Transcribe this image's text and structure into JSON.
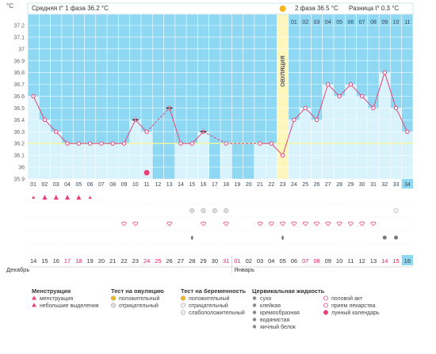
{
  "header": {
    "phase1_label": "Средняя t° 1 фаза",
    "phase1_value": "36.2 °C",
    "phase2_label": "2 фаза",
    "phase2_value": "36.5 °C",
    "diff_label": "Разница t°",
    "diff_value": "0.3 °C"
  },
  "ovulation_label": "ОВУЛЯЦИЯ",
  "months": {
    "december": "Декабрь",
    "january": "Январь"
  },
  "chart_data": {
    "type": "line",
    "ylabel": "°C",
    "ylim": [
      35.9,
      37.2
    ],
    "y_ticks": [
      "37.2",
      "37.1",
      "37",
      "36.9",
      "36.8",
      "36.7",
      "36.6",
      "36.5",
      "36.4",
      "36.3",
      "36.2",
      "36.1",
      "36",
      "35.9"
    ],
    "day_labels": [
      "01",
      "02",
      "03",
      "04",
      "05",
      "06",
      "07",
      "08",
      "09",
      "10",
      "11",
      "12",
      "13",
      "14",
      "15",
      "16",
      "17",
      "18",
      "19",
      "20",
      "21",
      "22",
      "23",
      "24",
      "25",
      "26",
      "27",
      "28",
      "29",
      "30",
      "31",
      "32",
      "33",
      "34"
    ],
    "top_day_labels": [
      "01",
      "02",
      "03",
      "04",
      "05",
      "06",
      "07",
      "08",
      "09",
      "10",
      "11"
    ],
    "date_labels": [
      "14",
      "15",
      "16",
      "17",
      "18",
      "19",
      "20",
      "21",
      "22",
      "23",
      "24",
      "25",
      "26",
      "27",
      "28",
      "29",
      "30",
      "31",
      "01",
      "02",
      "03",
      "04",
      "05",
      "06",
      "07",
      "08",
      "09",
      "10",
      "11",
      "12",
      "13",
      "14",
      "15",
      "16"
    ],
    "red_date_indices": [
      3,
      4,
      10,
      11,
      17,
      18,
      24,
      25,
      31,
      32
    ],
    "bar_color_mode": [
      "light",
      "light",
      "light",
      "light",
      "light",
      "light",
      "light",
      "light",
      "light",
      "light",
      "light",
      "blue",
      "blue",
      "light",
      "light",
      "light",
      "blue",
      "light",
      "light",
      "blue",
      "light",
      "light",
      "ovu",
      "light",
      "light",
      "light",
      "light",
      "light",
      "light",
      "light",
      "light",
      "light",
      "light",
      "light"
    ],
    "series": [
      {
        "values": [
          36.6,
          36.4,
          36.3,
          36.2,
          36.2,
          36.2,
          36.2,
          36.2,
          36.2,
          36.4,
          36.3,
          null,
          36.5,
          36.2,
          36.2,
          36.3,
          null,
          36.2,
          null,
          null,
          36.2,
          36.2,
          36.1,
          36.4,
          36.5,
          36.4,
          36.7,
          36.6,
          36.7,
          36.6,
          36.5,
          36.8,
          36.5,
          36.3
        ]
      }
    ],
    "coverline": 36.2
  },
  "symbols": {
    "menstruation_days": [
      0,
      1,
      2,
      3,
      4,
      5
    ],
    "menstruation_small_days": [
      0,
      5
    ],
    "ovulation_neg_days": [
      14,
      15,
      16,
      17
    ],
    "pregnancy_neg_days": [
      8,
      9,
      12,
      15,
      17,
      20,
      21,
      22,
      23,
      24,
      25,
      26,
      27,
      28,
      29,
      30
    ],
    "moon_row_day": 10,
    "drop_days": [
      14,
      22
    ],
    "tail_days": [
      31,
      32
    ],
    "extra_day": 31
  },
  "legend": {
    "menstruation": {
      "title": "Менструация",
      "items": [
        "менструация",
        "небольшие выделения"
      ]
    },
    "ovulation_test": {
      "title": "Тест на овуляцию",
      "items": [
        "положительный",
        "отрицательный"
      ]
    },
    "pregnancy_test": {
      "title": "Тест на беременность",
      "items": [
        "положительный",
        "отрицательный",
        "слабоположительный"
      ]
    },
    "cervical": {
      "title": "Цервикальная жидкость",
      "items": [
        "сухо",
        "клейкая",
        "кремообразная",
        "водянистая",
        "яичный белок"
      ]
    },
    "other": {
      "items": [
        "половой акт",
        "прием лекарства",
        "лунный календарь"
      ]
    }
  },
  "colors": {
    "light": "#cfeefb",
    "blue": "#8fd8f3",
    "ovu": "#fff6bd",
    "line": "#e2477a",
    "accent": "#ef3d78"
  }
}
